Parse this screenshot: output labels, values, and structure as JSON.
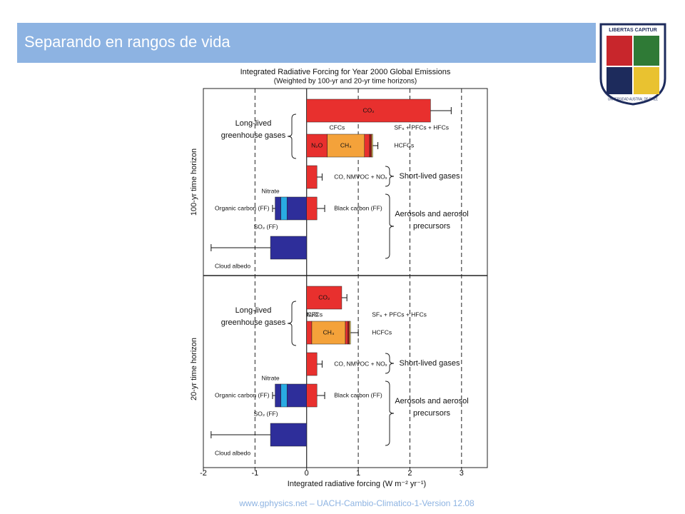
{
  "header": {
    "title": "Separando en rangos de vida",
    "logo": {
      "motto": "LIBERTAS CAPITUR",
      "name": "UNIVERSIDAD AUSTRAL DE CHILE"
    }
  },
  "footer": "www.gphysics.net – UACH-Cambio-Climatico-1-Version 12.08",
  "chart_data": {
    "type": "bar",
    "orientation": "horizontal",
    "title": "Integrated Radiative Forcing for Year 2000 Global Emissions",
    "subtitle": "(Weighted by 100-yr and 20-yr time horizons)",
    "xlabel": "Integrated radiative forcing (W m⁻² yr⁻¹)",
    "xlim": [
      -2,
      3.5
    ],
    "xticks": [
      -2,
      -1,
      0,
      1,
      2,
      3
    ],
    "grid": true,
    "panels": [
      {
        "ylabel": "100-yr time horizon",
        "rows": [
          {
            "segments": [
              {
                "name": "CO₂",
                "value": 2.4,
                "color": "#e8302e",
                "error": 0.4
              }
            ]
          },
          {
            "segments": [
              {
                "name": "N₂O",
                "value": 0.4,
                "color": "#e8302e"
              },
              {
                "name": "CH₄",
                "value": 0.72,
                "color": "#f4a23a"
              },
              {
                "name": "CFCs",
                "value": 0.1,
                "color": "#e8302e"
              },
              {
                "name": "HCFCs",
                "value": 0.04,
                "color": "#9a1b1b"
              },
              {
                "name": "SF₆ + PFCs + HFCs",
                "value": 0.02,
                "color": "#f2d24a",
                "error": 0.1
              }
            ]
          },
          {
            "segments": [
              {
                "name": "CO, NMVOC + NOₓ",
                "value": 0.2,
                "color": "#e8302e",
                "error": 0.1
              }
            ]
          },
          {
            "segments": [
              {
                "name": "Black carbon (FF)",
                "value": 0.2,
                "color": "#e8302e",
                "error": 0.15
              },
              {
                "name": "SO₂ (FF)",
                "value": -0.38,
                "color": "#2e2e9a"
              },
              {
                "name": "Organic carbon (FF)",
                "value": -0.12,
                "color": "#29abe2"
              },
              {
                "name": "Nitrate",
                "value": -0.11,
                "color": "#2e2e9a",
                "error": 0.05
              }
            ]
          },
          {
            "segments": [
              {
                "name": "Cloud albedo",
                "value": -0.7,
                "color": "#2e2e9a",
                "error": 1.15
              }
            ]
          }
        ],
        "groups": [
          [
            "Long-lived",
            "greenhouse gases"
          ],
          [
            "Short-lived gases"
          ],
          [
            "Aerosols and aerosol",
            "precursors"
          ]
        ]
      },
      {
        "ylabel": "20-yr time horizon",
        "rows": [
          {
            "segments": [
              {
                "name": "CO₂",
                "value": 0.68,
                "color": "#e8302e",
                "error": 0.1
              }
            ]
          },
          {
            "segments": [
              {
                "name": "N₂O",
                "value": 0.1,
                "color": "#e8302e"
              },
              {
                "name": "CH₄",
                "value": 0.65,
                "color": "#f4a23a"
              },
              {
                "name": "CFCs",
                "value": 0.05,
                "color": "#e8302e"
              },
              {
                "name": "HCFCs",
                "value": 0.03,
                "color": "#9a1b1b"
              },
              {
                "name": "SF₆ + PFCs + HFCs",
                "value": 0.02,
                "color": "#f2d24a",
                "error": 0.15
              }
            ]
          },
          {
            "segments": [
              {
                "name": "CO, NMVOC + NOₓ",
                "value": 0.2,
                "color": "#e8302e",
                "error": 0.1
              }
            ]
          },
          {
            "segments": [
              {
                "name": "Black carbon (FF)",
                "value": 0.2,
                "color": "#e8302e",
                "error": 0.15
              },
              {
                "name": "SO₂ (FF)",
                "value": -0.38,
                "color": "#2e2e9a"
              },
              {
                "name": "Organic carbon (FF)",
                "value": -0.12,
                "color": "#29abe2"
              },
              {
                "name": "Nitrate",
                "value": -0.11,
                "color": "#2e2e9a",
                "error": 0.05
              }
            ]
          },
          {
            "segments": [
              {
                "name": "Cloud albedo",
                "value": -0.7,
                "color": "#2e2e9a",
                "error": 1.15
              }
            ]
          }
        ],
        "groups": [
          [
            "Long-lived",
            "greenhouse gases"
          ],
          [
            "Short-lived gases"
          ],
          [
            "Aerosols and aerosol",
            "precursors"
          ]
        ]
      }
    ]
  }
}
